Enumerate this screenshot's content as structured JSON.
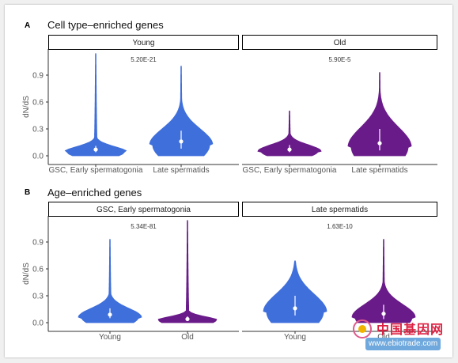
{
  "colors": {
    "young": "#3f6fdb",
    "old": "#6a1b8a",
    "background": "#ffffff",
    "axis": "#333333",
    "text": "#555555"
  },
  "chart_data": [
    {
      "panel_letter": "A",
      "title": "Cell type–enriched genes",
      "type": "violin",
      "ylabel": "dN/dS",
      "ylim": [
        0,
        1.2
      ],
      "yticks": [
        "0.0",
        "0.3",
        "0.6",
        "0.9"
      ],
      "grid": false,
      "facets": [
        {
          "label": "Young",
          "pvalue": "5.20E-21",
          "categories": [
            "GSC, Early spermatogonia",
            "Late spermatids"
          ],
          "violins": [
            {
              "color": "young",
              "min": 0.0,
              "max": 1.14,
              "median": 0.07,
              "q1": 0.04,
              "q3": 0.11,
              "peak": 0.04
            },
            {
              "color": "young",
              "min": 0.0,
              "max": 1.0,
              "median": 0.16,
              "q1": 0.08,
              "q3": 0.28,
              "peak": 0.12
            }
          ]
        },
        {
          "label": "Old",
          "pvalue": "5.90E-5",
          "categories": [
            "GSC, Early spermatogonia",
            "Late spermatids"
          ],
          "violins": [
            {
              "color": "old",
              "min": 0.0,
              "max": 0.5,
              "median": 0.07,
              "q1": 0.04,
              "q3": 0.12,
              "peak": 0.05
            },
            {
              "color": "old",
              "min": 0.0,
              "max": 0.93,
              "median": 0.14,
              "q1": 0.06,
              "q3": 0.3,
              "peak": 0.1
            }
          ]
        }
      ]
    },
    {
      "panel_letter": "B",
      "title": "Age–enriched genes",
      "type": "violin",
      "ylabel": "dN/dS",
      "ylim": [
        0,
        1.2
      ],
      "yticks": [
        "0.0",
        "0.3",
        "0.6",
        "0.9"
      ],
      "grid": false,
      "facets": [
        {
          "label": "GSC, Early spermatogonia",
          "pvalue": "5.34E-81",
          "categories": [
            "Young",
            "Old"
          ],
          "violins": [
            {
              "color": "young",
              "min": 0.0,
              "max": 0.93,
              "median": 0.09,
              "q1": 0.05,
              "q3": 0.16,
              "peak": 0.06
            },
            {
              "color": "old",
              "min": 0.0,
              "max": 1.14,
              "median": 0.04,
              "q1": 0.02,
              "q3": 0.07,
              "peak": 0.02
            }
          ]
        },
        {
          "label": "Late spermatids",
          "pvalue": "1.63E-10",
          "categories": [
            "Young",
            "Old"
          ],
          "violins": [
            {
              "color": "young",
              "min": 0.0,
              "max": 0.69,
              "median": 0.16,
              "q1": 0.08,
              "q3": 0.3,
              "peak": 0.12
            },
            {
              "color": "old",
              "min": 0.0,
              "max": 0.93,
              "median": 0.1,
              "q1": 0.04,
              "q3": 0.2,
              "peak": 0.06
            }
          ]
        }
      ]
    }
  ],
  "watermark": {
    "text": "中国基因网",
    "url": "www.ebiotrade.com"
  }
}
